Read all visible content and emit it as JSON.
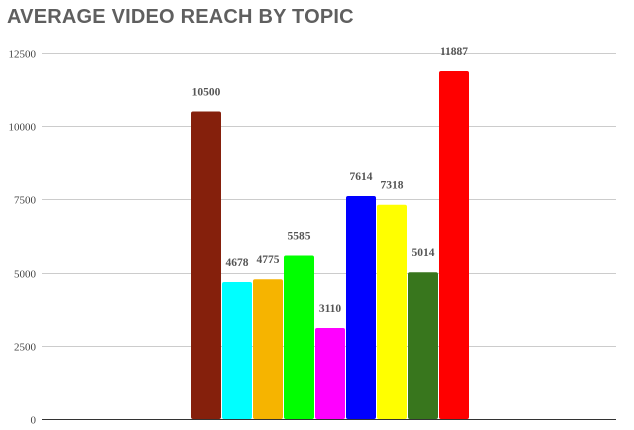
{
  "chart_data": {
    "type": "bar",
    "title": "AVERAGE VIDEO REACH BY TOPIC",
    "xlabel": "",
    "ylabel": "",
    "ylim": [
      0,
      12500
    ],
    "yticks": [
      0,
      2500,
      5000,
      7500,
      10000,
      12500
    ],
    "grid": true,
    "legend": "none",
    "series": [
      {
        "values": [
          10500
        ],
        "color": "#85200c"
      },
      {
        "values": [
          4678
        ],
        "color": "#00ffff"
      },
      {
        "values": [
          4775
        ],
        "color": "#f6b400"
      },
      {
        "values": [
          5585
        ],
        "color": "#00ff00"
      },
      {
        "values": [
          3110
        ],
        "color": "#ff00ff"
      },
      {
        "values": [
          7614
        ],
        "color": "#0000ff"
      },
      {
        "values": [
          7318
        ],
        "color": "#ffff00"
      },
      {
        "values": [
          5014
        ],
        "color": "#38761d"
      },
      {
        "values": [
          11887
        ],
        "color": "#ff0000"
      }
    ]
  }
}
